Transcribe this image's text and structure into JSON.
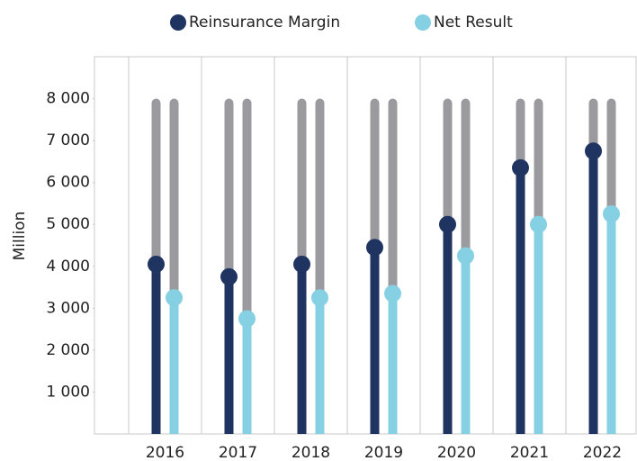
{
  "chart_data": {
    "type": "lollipop",
    "y_label": "Million",
    "categories": [
      "2016",
      "2017",
      "2018",
      "2019",
      "2020",
      "2021",
      "2022"
    ],
    "series": [
      {
        "name": "Reinsurance Margin",
        "color": "#1f3461",
        "values": [
          4050,
          3750,
          4050,
          4450,
          5000,
          6350,
          6750
        ]
      },
      {
        "name": "Net Result",
        "color": "#86d0e3",
        "values": [
          3250,
          2750,
          3250,
          3350,
          4250,
          5000,
          5250
        ]
      }
    ],
    "track_color": "#9b9b9f",
    "ylim": [
      0,
      9000
    ],
    "yticks": [
      {
        "value": 1000,
        "label": "1 000"
      },
      {
        "value": 2000,
        "label": "2 000"
      },
      {
        "value": 3000,
        "label": "3 000"
      },
      {
        "value": 4000,
        "label": "4 000"
      },
      {
        "value": 5000,
        "label": "5 000"
      },
      {
        "value": 6000,
        "label": "6 000"
      },
      {
        "value": 7000,
        "label": "7 000"
      },
      {
        "value": 8000,
        "label": "8 000"
      }
    ],
    "legend": "top"
  }
}
